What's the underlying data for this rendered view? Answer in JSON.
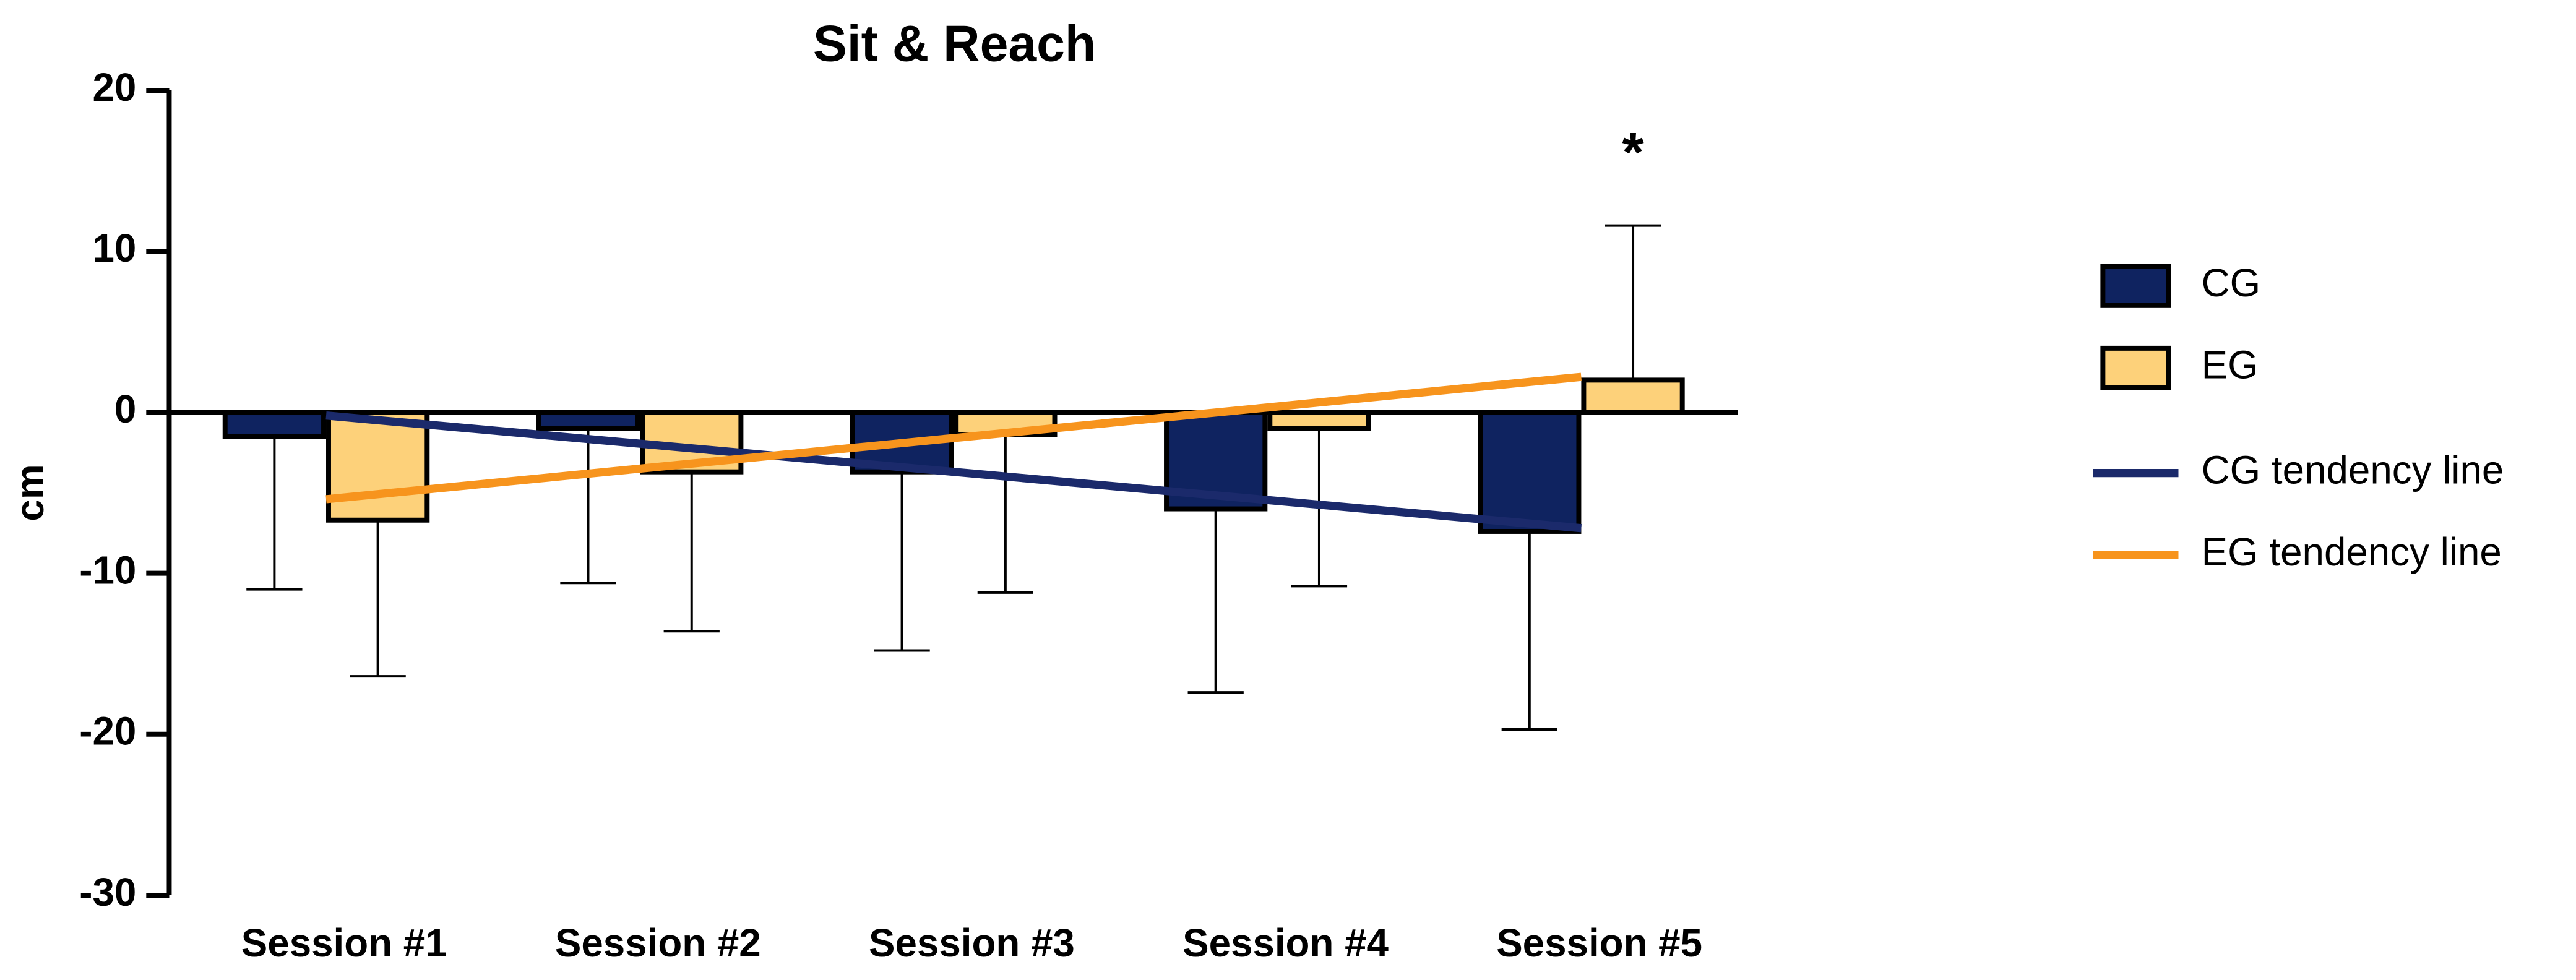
{
  "chart_data": {
    "type": "bar",
    "title": "Sit & Reach",
    "y_label": "cm",
    "categories": [
      "Session #1",
      "Session #2",
      "Session #3",
      "Session #4",
      "Session #5"
    ],
    "series": [
      {
        "name": "CG",
        "color": "#0f2360",
        "values": [
          -1.5,
          -1,
          -3.7,
          -6,
          -7.4
        ],
        "errors": [
          9.5,
          9.6,
          11.1,
          11.4,
          12.3
        ]
      },
      {
        "name": "EG",
        "color": "#fdd17a",
        "values": [
          -6.7,
          -3.7,
          -1.4,
          -1,
          2
        ],
        "errors": [
          9.7,
          9.9,
          9.8,
          9.8,
          9.6
        ]
      }
    ],
    "tendency_lines": [
      {
        "name": "CG tendency line",
        "color": "#1b2a6b",
        "values": [
          -0.2,
          -1.95,
          -3.7,
          -5.45,
          -7.2
        ]
      },
      {
        "name": "EG tendency line",
        "color": "#f7941d",
        "values": [
          -5.4,
          -3.5,
          -1.6,
          0.3,
          2.2
        ]
      }
    ],
    "annotation": "*",
    "ylim": [
      -30,
      20
    ],
    "yticks": [
      -30,
      -20,
      -10,
      0,
      10,
      20
    ]
  }
}
